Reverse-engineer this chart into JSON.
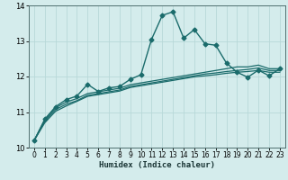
{
  "title": "",
  "xlabel": "Humidex (Indice chaleur)",
  "ylabel": "",
  "bg_color": "#d4ecec",
  "grid_color": "#b8d8d8",
  "line_color": "#1a6b6b",
  "xlim": [
    -0.5,
    23.5
  ],
  "ylim": [
    10,
    14
  ],
  "yticks": [
    10,
    11,
    12,
    13,
    14
  ],
  "xticks": [
    0,
    1,
    2,
    3,
    4,
    5,
    6,
    7,
    8,
    9,
    10,
    11,
    12,
    13,
    14,
    15,
    16,
    17,
    18,
    19,
    20,
    21,
    22,
    23
  ],
  "series": [
    {
      "x": [
        0,
        1,
        2,
        3,
        4,
        5,
        6,
        7,
        8,
        9,
        10,
        11,
        12,
        13,
        14,
        15,
        16,
        17,
        18,
        19,
        20,
        21,
        22,
        23
      ],
      "y": [
        10.2,
        10.8,
        11.15,
        11.35,
        11.45,
        11.78,
        11.58,
        11.68,
        11.72,
        11.92,
        12.05,
        13.05,
        13.72,
        13.82,
        13.08,
        13.32,
        12.92,
        12.88,
        12.38,
        12.12,
        11.98,
        12.18,
        12.02,
        12.22
      ],
      "marker": "D",
      "markersize": 2.5,
      "linewidth": 1.0
    },
    {
      "x": [
        0,
        1,
        2,
        3,
        4,
        5,
        6,
        7,
        8,
        9,
        10,
        11,
        12,
        13,
        14,
        15,
        16,
        17,
        18,
        19,
        20,
        21,
        22,
        23
      ],
      "y": [
        10.2,
        10.78,
        11.12,
        11.28,
        11.38,
        11.52,
        11.57,
        11.62,
        11.67,
        11.77,
        11.82,
        11.87,
        11.92,
        11.97,
        12.02,
        12.07,
        12.12,
        12.17,
        12.22,
        12.27,
        12.27,
        12.32,
        12.22,
        12.22
      ],
      "marker": null,
      "markersize": 0,
      "linewidth": 0.9
    },
    {
      "x": [
        0,
        1,
        2,
        3,
        4,
        5,
        6,
        7,
        8,
        9,
        10,
        11,
        12,
        13,
        14,
        15,
        16,
        17,
        18,
        19,
        20,
        21,
        22,
        23
      ],
      "y": [
        10.2,
        10.74,
        11.07,
        11.22,
        11.32,
        11.47,
        11.52,
        11.57,
        11.62,
        11.72,
        11.77,
        11.82,
        11.87,
        11.92,
        11.97,
        12.02,
        12.07,
        12.1,
        12.14,
        12.17,
        12.2,
        12.24,
        12.17,
        12.17
      ],
      "marker": null,
      "markersize": 0,
      "linewidth": 0.9
    },
    {
      "x": [
        0,
        1,
        2,
        3,
        4,
        5,
        6,
        7,
        8,
        9,
        10,
        11,
        12,
        13,
        14,
        15,
        16,
        17,
        18,
        19,
        20,
        21,
        22,
        23
      ],
      "y": [
        10.2,
        10.7,
        11.02,
        11.17,
        11.3,
        11.44,
        11.49,
        11.54,
        11.59,
        11.69,
        11.74,
        11.79,
        11.84,
        11.89,
        11.94,
        11.99,
        12.02,
        12.05,
        12.09,
        12.12,
        12.14,
        12.17,
        12.12,
        12.12
      ],
      "marker": null,
      "markersize": 0,
      "linewidth": 0.9
    }
  ]
}
